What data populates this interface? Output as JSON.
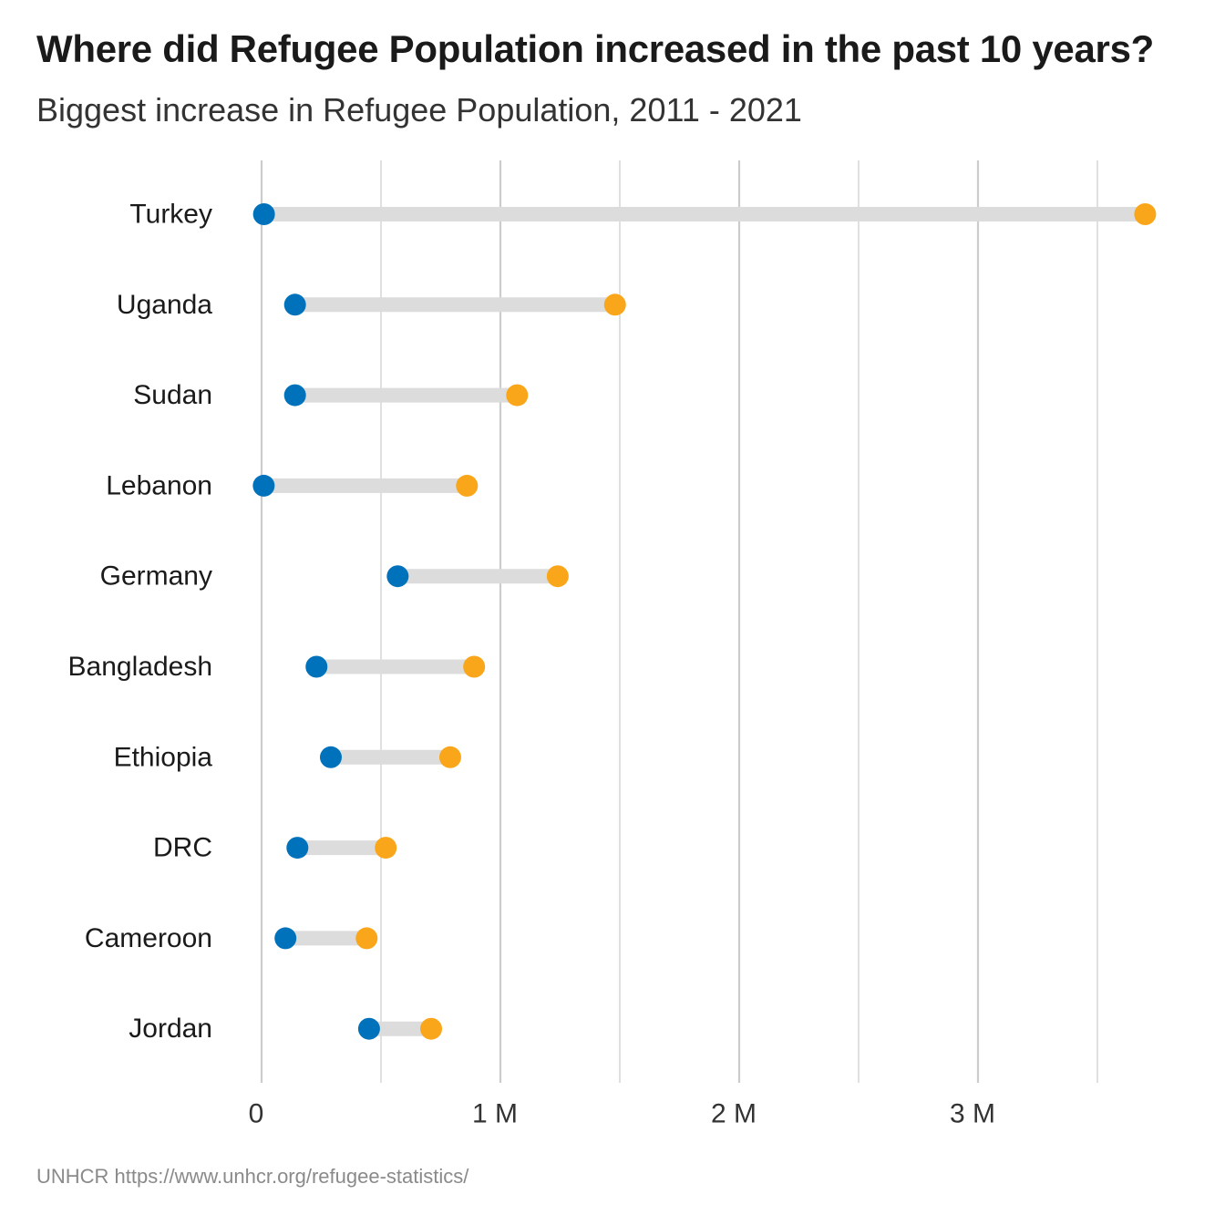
{
  "title": "Where did Refugee Population increased in the past 10 years?",
  "subtitle": "Biggest increase in Refugee Population, 2011 - 2021",
  "caption": "UNHCR https://www.unhcr.org/refugee-statistics/",
  "colors": {
    "start": "#0072bc",
    "end": "#faa61a",
    "segment": "#dcdcdc",
    "gridline": "#cccccc"
  },
  "chart_data": {
    "type": "dumbbell",
    "categories": [
      "Turkey",
      "Uganda",
      "Sudan",
      "Lebanon",
      "Germany",
      "Bangladesh",
      "Ethiopia",
      "DRC",
      "Cameroon",
      "Jordan"
    ],
    "series": [
      {
        "values": [
          10000,
          140000,
          140000,
          9000,
          570000,
          230000,
          290000,
          150000,
          100000,
          450000
        ]
      },
      {
        "values": [
          3700000,
          1480000,
          1070000,
          860000,
          1240000,
          890000,
          790000,
          520000,
          440000,
          710000
        ]
      }
    ],
    "x_ticks": [
      {
        "value": 0,
        "label": "0"
      },
      {
        "value": 1000000,
        "label": "1 M"
      },
      {
        "value": 2000000,
        "label": "2 M"
      },
      {
        "value": 3000000,
        "label": "3 M"
      }
    ],
    "xlim": [
      0,
      3500000
    ],
    "grid": true,
    "legend": "none"
  }
}
